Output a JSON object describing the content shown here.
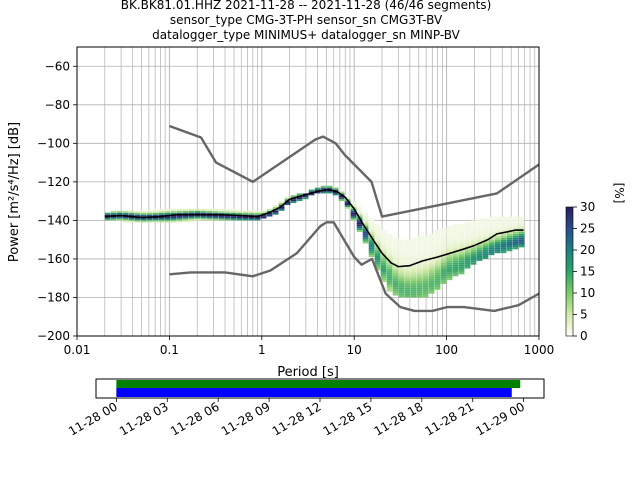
{
  "title_lines": [
    "BK.BK81.01.HHZ   2021-11-28 -- 2021-11-28  (46/46 segments)",
    "sensor_type CMG-3T-PH sensor_sn CMG3T-BV",
    "datalogger_type MINIMUS+ datalogger_sn MINP-BV"
  ],
  "chart_data": [
    {
      "type": "heatmap",
      "title": "BK.BK81.01.HHZ   2021-11-28 -- 2021-11-28  (46/46 segments)",
      "xlabel": "Period [s]",
      "ylabel": "Power [m²/s⁴/Hz] [dB]",
      "xscale": "log",
      "xlim": [
        0.01,
        1000
      ],
      "ylim": [
        -200,
        -50
      ],
      "x_ticks": [
        "0.01",
        "0.1",
        "1",
        "10",
        "100",
        "1000"
      ],
      "x_tick_values": [
        0.01,
        0.1,
        1,
        10,
        100,
        1000
      ],
      "y_ticks": [
        "−200",
        "−180",
        "−160",
        "−140",
        "−120",
        "−100",
        "−80",
        "−60"
      ],
      "y_tick_values": [
        -200,
        -180,
        -160,
        -140,
        -120,
        -100,
        -80,
        -60
      ],
      "grid": true,
      "colorbar": {
        "label": "[%]",
        "range": [
          0,
          30
        ],
        "ticks": [
          "0",
          "5",
          "10",
          "15",
          "20",
          "25",
          "30"
        ],
        "tick_values": [
          0,
          5,
          10,
          15,
          20,
          25,
          30
        ]
      },
      "colors": {
        "noise_model": "#666666",
        "mean_line": "#000000",
        "grid": "#b0b0b0",
        "colormap": [
          "#ffffff",
          "#d9ecb0",
          "#7fcc6a",
          "#2fa36b",
          "#1f7f7f",
          "#2b4e8c",
          "#2b1d5e"
        ]
      },
      "series": [
        {
          "points": [
            [
              0.1,
              -91
            ],
            [
              0.22,
              -97
            ],
            [
              0.32,
              -110
            ],
            [
              0.8,
              -120
            ],
            [
              3.8,
              -98
            ],
            [
              4.6,
              -96.5
            ],
            [
              6.3,
              -100
            ],
            [
              7.9,
              -106
            ],
            [
              15.4,
              -120
            ],
            [
              20,
              -138
            ],
            [
              350,
              -126
            ],
            [
              1000,
              -111
            ]
          ]
        },
        {
          "points": [
            [
              0.1,
              -168
            ],
            [
              0.17,
              -167
            ],
            [
              0.4,
              -167
            ],
            [
              0.8,
              -169
            ],
            [
              1.24,
              -166
            ],
            [
              2.4,
              -157
            ],
            [
              4.3,
              -143
            ],
            [
              5,
              -141
            ],
            [
              6,
              -141
            ],
            [
              10,
              -159
            ],
            [
              12,
              -163
            ],
            [
              15.6,
              -160
            ],
            [
              21.9,
              -178
            ],
            [
              31.6,
              -185
            ],
            [
              45,
              -187
            ],
            [
              70,
              -187
            ],
            [
              101,
              -185
            ],
            [
              154,
              -185
            ],
            [
              328,
              -187
            ],
            [
              600,
              -184
            ],
            [
              1000,
              -178
            ]
          ]
        },
        {
          "points": [
            [
              0.02,
              -138
            ],
            [
              0.03,
              -137.5
            ],
            [
              0.05,
              -138.5
            ],
            [
              0.08,
              -138
            ],
            [
              0.12,
              -137
            ],
            [
              0.2,
              -137
            ],
            [
              0.35,
              -137
            ],
            [
              0.6,
              -137.5
            ],
            [
              0.9,
              -138
            ],
            [
              1.2,
              -136
            ],
            [
              1.6,
              -133
            ],
            [
              2.0,
              -129
            ],
            [
              2.8,
              -127
            ],
            [
              4.0,
              -125
            ],
            [
              5.2,
              -124
            ],
            [
              6.5,
              -125
            ],
            [
              8.0,
              -128
            ],
            [
              10,
              -134
            ],
            [
              12.5,
              -142
            ],
            [
              16,
              -150
            ],
            [
              20,
              -157
            ],
            [
              25,
              -162
            ],
            [
              30,
              -164
            ],
            [
              40,
              -163.5
            ],
            [
              55,
              -161
            ],
            [
              80,
              -159
            ],
            [
              110,
              -157
            ],
            [
              150,
              -155
            ],
            [
              200,
              -153
            ],
            [
              280,
              -150
            ],
            [
              350,
              -147
            ],
            [
              450,
              -146
            ],
            [
              560,
              -145
            ],
            [
              680,
              -145
            ]
          ]
        }
      ],
      "distribution": {
        "low": [
          [
            0.02,
            -139
          ],
          [
            0.03,
            -140
          ],
          [
            0.05,
            -141
          ],
          [
            0.1,
            -141
          ],
          [
            0.2,
            -140
          ],
          [
            0.5,
            -140
          ],
          [
            1,
            -139
          ],
          [
            1.5,
            -136
          ],
          [
            2,
            -131
          ],
          [
            3,
            -128
          ],
          [
            4,
            -126
          ],
          [
            5,
            -125
          ],
          [
            6,
            -126
          ],
          [
            8,
            -131
          ],
          [
            10,
            -140
          ],
          [
            13,
            -150
          ],
          [
            16,
            -160
          ],
          [
            20,
            -170
          ],
          [
            25,
            -177
          ],
          [
            30,
            -179
          ],
          [
            40,
            -180
          ],
          [
            60,
            -179
          ],
          [
            80,
            -176
          ],
          [
            100,
            -171
          ],
          [
            150,
            -167
          ],
          [
            200,
            -162
          ],
          [
            300,
            -158
          ],
          [
            500,
            -155
          ],
          [
            700,
            -153
          ]
        ],
        "high": [
          [
            0.02,
            -137
          ],
          [
            0.03,
            -135
          ],
          [
            0.05,
            -136
          ],
          [
            0.1,
            -134
          ],
          [
            0.2,
            -134
          ],
          [
            0.5,
            -135
          ],
          [
            1,
            -136
          ],
          [
            1.5,
            -132
          ],
          [
            2,
            -128
          ],
          [
            3,
            -126
          ],
          [
            4,
            -124
          ],
          [
            5,
            -122
          ],
          [
            6,
            -123
          ],
          [
            8,
            -126
          ],
          [
            10,
            -131
          ],
          [
            13,
            -136
          ],
          [
            16,
            -140
          ],
          [
            20,
            -145
          ],
          [
            25,
            -148
          ],
          [
            30,
            -150
          ],
          [
            40,
            -150
          ],
          [
            60,
            -148
          ],
          [
            80,
            -146
          ],
          [
            100,
            -144
          ],
          [
            150,
            -142
          ],
          [
            200,
            -140
          ],
          [
            300,
            -139
          ],
          [
            500,
            -138
          ],
          [
            700,
            -138
          ]
        ],
        "ridge": [
          [
            0.02,
            -138
          ],
          [
            0.03,
            -137.5
          ],
          [
            0.05,
            -138.5
          ],
          [
            0.1,
            -138
          ],
          [
            0.2,
            -137
          ],
          [
            0.5,
            -138
          ],
          [
            1,
            -138.5
          ],
          [
            1.5,
            -135
          ],
          [
            2,
            -130
          ],
          [
            3,
            -127
          ],
          [
            4,
            -125
          ],
          [
            5,
            -124
          ],
          [
            6,
            -124.5
          ],
          [
            8,
            -129
          ],
          [
            10,
            -137
          ],
          [
            13,
            -146
          ],
          [
            16,
            -155
          ],
          [
            20,
            -164
          ],
          [
            25,
            -170
          ],
          [
            30,
            -175
          ],
          [
            40,
            -177
          ],
          [
            60,
            -175
          ],
          [
            80,
            -171
          ],
          [
            100,
            -166
          ],
          [
            150,
            -163
          ],
          [
            200,
            -160
          ],
          [
            300,
            -156
          ],
          [
            500,
            -152
          ],
          [
            700,
            -150
          ]
        ]
      }
    },
    {
      "type": "bar",
      "orientation": "horizontal",
      "x_ticks": [
        "11-28 00",
        "11-28 03",
        "11-28 06",
        "11-28 09",
        "11-28 12",
        "11-28 15",
        "11-28 18",
        "11-28 21",
        "11-29 00"
      ],
      "x_tick_values": [
        0,
        3,
        6,
        9,
        12,
        15,
        18,
        21,
        24
      ],
      "xlim": [
        -1.2,
        25.2
      ],
      "series": [
        {
          "start": 0,
          "end": 23.8,
          "color": "#008000"
        },
        {
          "start": 0,
          "end": 23.3,
          "color": "#0000ff"
        }
      ]
    }
  ]
}
